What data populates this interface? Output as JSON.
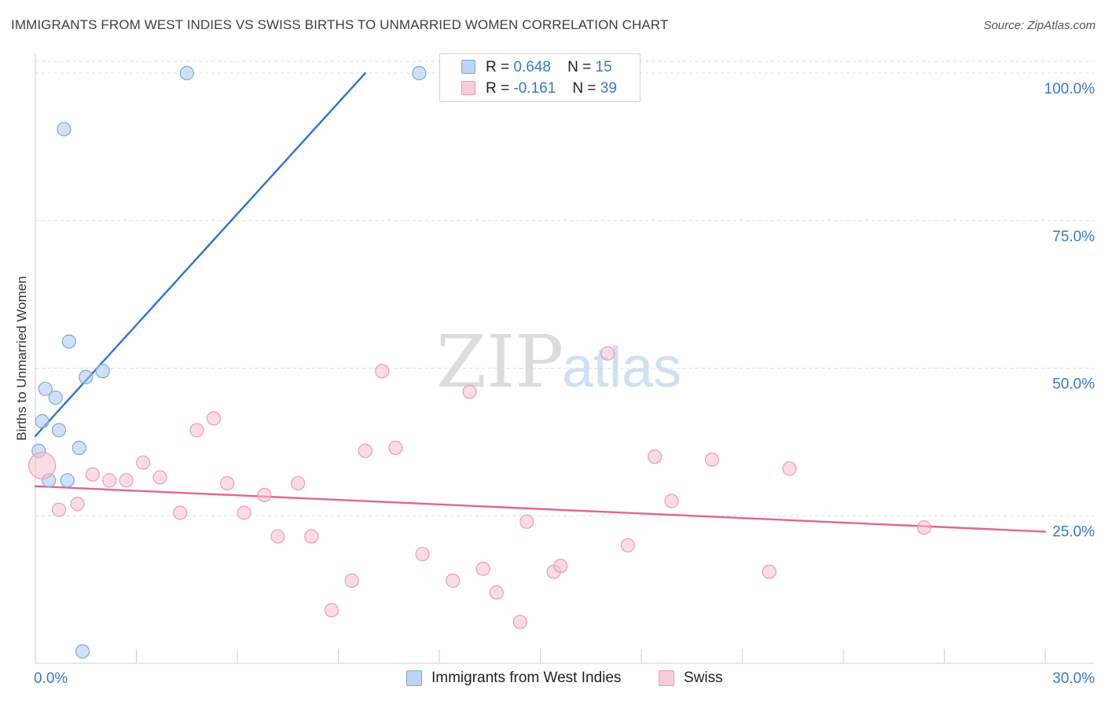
{
  "chart_data": {
    "type": "scatter",
    "title": "IMMIGRANTS FROM WEST INDIES VS SWISS BIRTHS TO UNMARRIED WOMEN CORRELATION CHART",
    "source": "Source: ZipAtlas.com",
    "xlabel": "",
    "ylabel": "Births to Unmarried Women",
    "xlim": [
      0,
      30
    ],
    "ylim": [
      0,
      102
    ],
    "x_tick_labels": [
      "0.0%",
      "30.0%"
    ],
    "y_tick_labels": [
      {
        "value": 25,
        "label": "25.0%"
      },
      {
        "value": 50,
        "label": "50.0%"
      },
      {
        "value": 75,
        "label": "75.0%"
      },
      {
        "value": 100,
        "label": "100.0%"
      }
    ],
    "grid": true,
    "watermark": "ZIPatlas",
    "legend": {
      "stats": [
        {
          "r_label": "R =",
          "r": "0.648",
          "n_label": "N =",
          "n": "15"
        },
        {
          "r_label": "R =",
          "r": "-0.161",
          "n_label": "N =",
          "n": "39"
        }
      ]
    },
    "series": [
      {
        "name": "Immigrants from West Indies",
        "color": "#a9c8f0",
        "edge": "#7ea9e0",
        "trend_color": "#2f74d0",
        "trend": [
          [
            0.0,
            38.5
          ],
          [
            9.8,
            100.0
          ]
        ],
        "points": [
          [
            0.1,
            36.0
          ],
          [
            0.2,
            41.0
          ],
          [
            0.3,
            46.5
          ],
          [
            0.4,
            31.0
          ],
          [
            0.6,
            45.0
          ],
          [
            0.7,
            39.5
          ],
          [
            0.85,
            90.5
          ],
          [
            0.95,
            31.0
          ],
          [
            1.0,
            54.5
          ],
          [
            1.3,
            36.5
          ],
          [
            1.4,
            2.0
          ],
          [
            1.5,
            48.5
          ],
          [
            2.0,
            49.5
          ],
          [
            4.5,
            100.0
          ],
          [
            11.4,
            100.0
          ]
        ]
      },
      {
        "name": "Swiss",
        "color": "#f6bfd0",
        "edge": "#ee9bb6",
        "trend_color": "#e06693",
        "trend": [
          [
            0.0,
            30.0
          ],
          [
            30.0,
            22.3
          ]
        ],
        "points": [
          [
            0.2,
            33.5
          ],
          [
            0.7,
            26.0
          ],
          [
            1.25,
            27.0
          ],
          [
            1.7,
            32.0
          ],
          [
            2.2,
            31.0
          ],
          [
            2.7,
            31.0
          ],
          [
            3.2,
            34.0
          ],
          [
            3.7,
            31.5
          ],
          [
            4.3,
            25.5
          ],
          [
            4.8,
            39.5
          ],
          [
            5.3,
            41.5
          ],
          [
            5.7,
            30.5
          ],
          [
            6.2,
            25.5
          ],
          [
            6.8,
            28.5
          ],
          [
            7.2,
            21.5
          ],
          [
            7.8,
            30.5
          ],
          [
            8.2,
            21.5
          ],
          [
            8.8,
            9.0
          ],
          [
            9.4,
            14.0
          ],
          [
            9.8,
            36.0
          ],
          [
            10.3,
            49.5
          ],
          [
            10.7,
            36.5
          ],
          [
            11.5,
            18.5
          ],
          [
            12.4,
            14.0
          ],
          [
            12.9,
            46.0
          ],
          [
            13.3,
            16.0
          ],
          [
            13.7,
            12.0
          ],
          [
            14.4,
            7.0
          ],
          [
            14.6,
            24.0
          ],
          [
            15.4,
            15.5
          ],
          [
            15.6,
            16.5
          ],
          [
            17.0,
            52.5
          ],
          [
            17.6,
            20.0
          ],
          [
            18.4,
            35.0
          ],
          [
            18.9,
            27.5
          ],
          [
            20.1,
            34.5
          ],
          [
            21.8,
            15.5
          ],
          [
            22.4,
            33.0
          ],
          [
            26.4,
            23.0
          ]
        ]
      }
    ]
  }
}
